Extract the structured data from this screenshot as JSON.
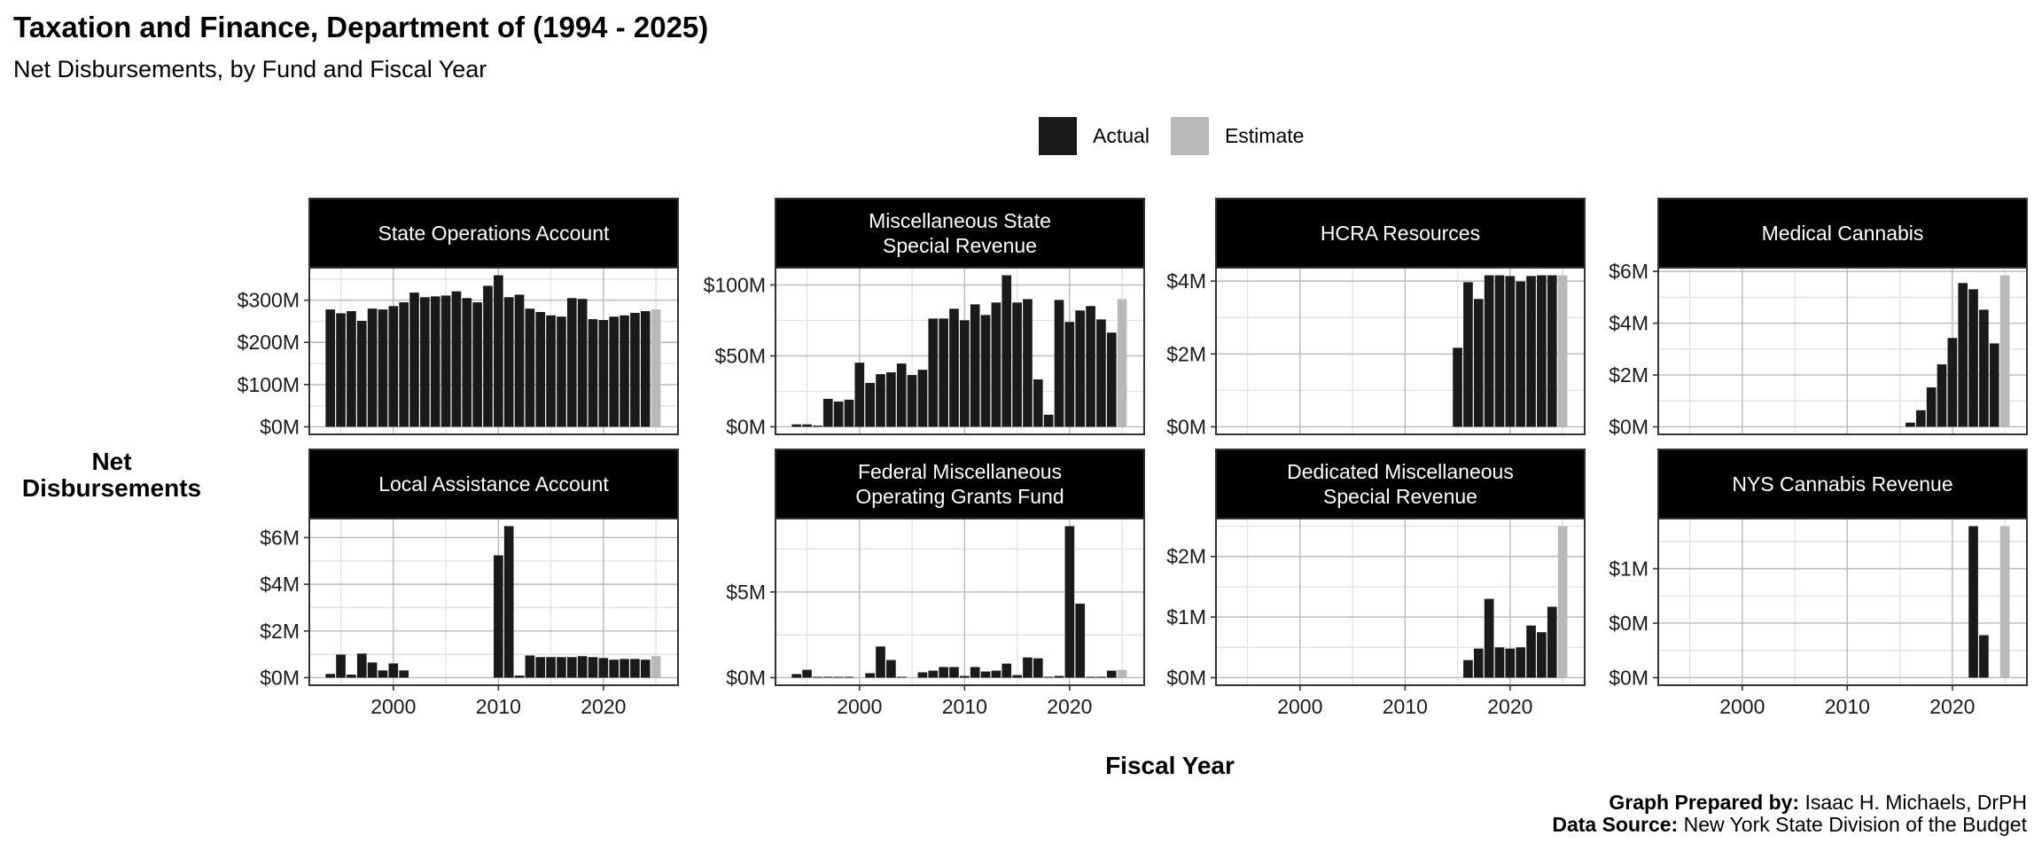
{
  "header": {
    "title": "Taxation and Finance, Department of (1994 - 2025)",
    "subtitle": "Net Disbursements, by Fund and Fiscal Year"
  },
  "legend": {
    "items": [
      {
        "label": "Actual",
        "color": "#1a1a1a"
      },
      {
        "label": "Estimate",
        "color": "#b8b8b8"
      }
    ]
  },
  "axes": {
    "ylabel_line1": "Net",
    "ylabel_line2": "Disbursements",
    "xlabel": "Fiscal Year"
  },
  "footer": {
    "prepared_label": "Graph Prepared by:",
    "prepared_value": " Isaac H. Michaels, DrPH",
    "source_label": "Data Source:",
    "source_value": " New York State Division of the Budget"
  },
  "chart_data": {
    "type": "bar",
    "title": "Taxation and Finance, Department of (1994 - 2025)",
    "subtitle": "Net Disbursements, by Fund and Fiscal Year",
    "xlabel": "Fiscal Year",
    "ylabel": "Net Disbursements",
    "units": "millions of dollars",
    "legend_position": "top",
    "grid": true,
    "xlim": [
      1994,
      2025
    ],
    "x_ticks": [
      2000,
      2010,
      2020
    ],
    "x_tick_labels": [
      "2000",
      "2010",
      "2020"
    ],
    "estimate_year": 2025,
    "panels": [
      {
        "name": "State Operations Account",
        "strip": [
          "State Operations Account"
        ],
        "y_ticks": [
          0,
          100,
          200,
          300
        ],
        "y_tick_labels": [
          "$0M",
          "$100M",
          "$200M",
          "$300M"
        ],
        "years": [
          1994,
          1995,
          1996,
          1997,
          1998,
          1999,
          2000,
          2001,
          2002,
          2003,
          2004,
          2005,
          2006,
          2007,
          2008,
          2009,
          2010,
          2011,
          2012,
          2013,
          2014,
          2015,
          2016,
          2017,
          2018,
          2019,
          2020,
          2021,
          2022,
          2023,
          2024,
          2025
        ],
        "values": [
          278,
          269,
          274,
          251,
          280,
          278,
          286,
          295,
          318,
          307,
          309,
          311,
          321,
          305,
          295,
          334,
          359,
          307,
          313,
          280,
          272,
          264,
          261,
          305,
          303,
          255,
          253,
          261,
          264,
          270,
          274,
          278
        ]
      },
      {
        "name": "Miscellaneous State Special Revenue",
        "strip": [
          "Miscellaneous State",
          "Special Revenue"
        ],
        "y_ticks": [
          0,
          50,
          100
        ],
        "y_tick_labels": [
          "$0M",
          "$50M",
          "$100M"
        ],
        "years": [
          1994,
          1995,
          1996,
          1997,
          1998,
          1999,
          2000,
          2001,
          2002,
          2003,
          2004,
          2005,
          2006,
          2007,
          2008,
          2009,
          2010,
          2011,
          2012,
          2013,
          2014,
          2015,
          2016,
          2017,
          2018,
          2019,
          2020,
          2021,
          2022,
          2023,
          2024,
          2025
        ],
        "values": [
          1.7,
          1.7,
          0.8,
          19.7,
          17.8,
          19.1,
          45.2,
          30.9,
          37.1,
          38.4,
          44.6,
          36.5,
          40.2,
          76.3,
          76.3,
          83.2,
          75.1,
          86.3,
          78.8,
          87.6,
          106.8,
          87.6,
          90.0,
          33.4,
          8.5,
          89.4,
          73.9,
          82.0,
          85.1,
          75.7,
          66.4,
          90.0
        ]
      },
      {
        "name": "HCRA Resources",
        "strip": [
          "HCRA Resources"
        ],
        "y_ticks": [
          0,
          2,
          4
        ],
        "y_tick_labels": [
          "$0M",
          "$2M",
          "$4M"
        ],
        "years": [
          2015,
          2016,
          2017,
          2018,
          2019,
          2020,
          2021,
          2022,
          2023,
          2024,
          2025
        ],
        "values": [
          2.17,
          3.97,
          3.51,
          4.16,
          4.16,
          4.14,
          3.99,
          4.14,
          4.16,
          4.16,
          4.16
        ]
      },
      {
        "name": "Medical Cannabis",
        "strip": [
          "Medical Cannabis"
        ],
        "y_ticks": [
          0,
          2,
          4,
          6
        ],
        "y_tick_labels": [
          "$0M",
          "$2M",
          "$4M",
          "$6M"
        ],
        "years": [
          2016,
          2017,
          2018,
          2019,
          2020,
          2021,
          2022,
          2023,
          2024,
          2025
        ],
        "values": [
          0.16,
          0.64,
          1.52,
          2.41,
          3.43,
          5.55,
          5.31,
          4.52,
          3.22,
          5.85
        ]
      },
      {
        "name": "Local Assistance Account",
        "strip": [
          "Local Assistance Account"
        ],
        "y_ticks": [
          0,
          2,
          4,
          6
        ],
        "y_tick_labels": [
          "$0M",
          "$2M",
          "$4M",
          "$6M"
        ],
        "years": [
          1994,
          1995,
          1996,
          1997,
          1998,
          1999,
          2000,
          2001,
          2010,
          2011,
          2012,
          2013,
          2014,
          2015,
          2016,
          2017,
          2018,
          2019,
          2020,
          2021,
          2022,
          2023,
          2024,
          2025
        ],
        "values": [
          0.16,
          0.99,
          0.13,
          1.03,
          0.65,
          0.31,
          0.61,
          0.31,
          5.24,
          6.49,
          0.09,
          0.95,
          0.88,
          0.88,
          0.88,
          0.88,
          0.92,
          0.88,
          0.84,
          0.77,
          0.8,
          0.8,
          0.77,
          0.92
        ]
      },
      {
        "name": "Federal Miscellaneous Operating Grants Fund",
        "strip": [
          "Federal Miscellaneous",
          "Operating Grants Fund"
        ],
        "y_ticks": [
          0,
          5
        ],
        "y_tick_labels": [
          "$0M",
          "$5M"
        ],
        "years": [
          1994,
          1995,
          1996,
          1997,
          1998,
          1999,
          2001,
          2002,
          2003,
          2004,
          2006,
          2007,
          2008,
          2009,
          2010,
          2011,
          2012,
          2013,
          2014,
          2015,
          2016,
          2017,
          2018,
          2019,
          2020,
          2021,
          2022,
          2023,
          2024,
          2025
        ],
        "values": [
          0.21,
          0.46,
          0.05,
          0.05,
          0.05,
          0.05,
          0.26,
          1.82,
          1.03,
          0.05,
          0.31,
          0.41,
          0.62,
          0.62,
          0.1,
          0.62,
          0.36,
          0.41,
          0.82,
          0.15,
          1.18,
          1.13,
          0.05,
          0.1,
          8.84,
          4.32,
          0.05,
          0.05,
          0.41,
          0.46
        ]
      },
      {
        "name": "Dedicated Miscellaneous Special Revenue",
        "strip": [
          "Dedicated Miscellaneous",
          "Special Revenue"
        ],
        "y_ticks": [
          0,
          1,
          2
        ],
        "y_tick_labels": [
          "$0M",
          "$1M",
          "$2M"
        ],
        "years": [
          2016,
          2017,
          2018,
          2019,
          2020,
          2021,
          2022,
          2023,
          2024,
          2025
        ],
        "values": [
          0.29,
          0.48,
          1.3,
          0.5,
          0.48,
          0.5,
          0.86,
          0.75,
          1.17,
          2.5
        ]
      },
      {
        "name": "NYS Cannabis Revenue",
        "strip": [
          "NYS Cannabis Revenue"
        ],
        "y_ticks": [
          0,
          0.5,
          1
        ],
        "y_tick_labels": [
          "$0M",
          "$0M",
          "$1M"
        ],
        "years": [
          2022,
          2023,
          2025
        ],
        "values": [
          1.39,
          0.39,
          1.39
        ]
      }
    ]
  }
}
